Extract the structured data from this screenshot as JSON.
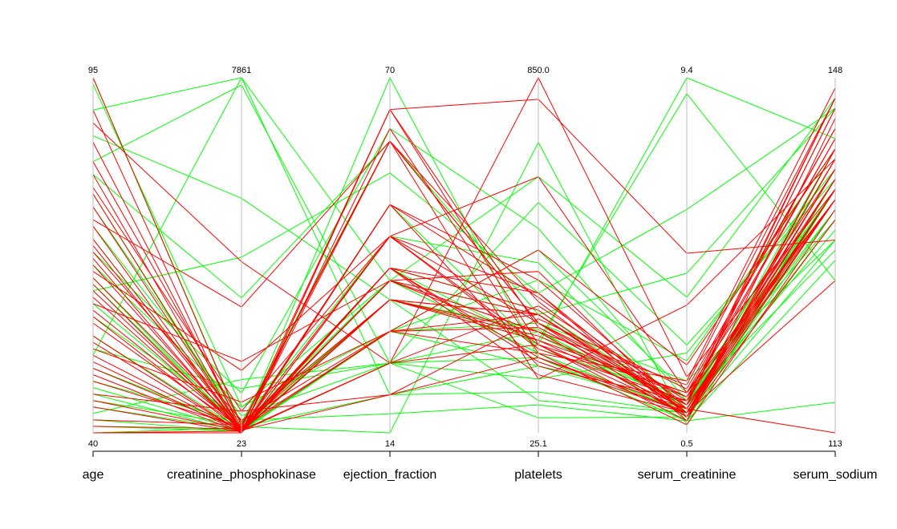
{
  "chart_data": {
    "type": "parallel-coordinates",
    "axes": [
      {
        "name": "age",
        "min": "40",
        "max": "95",
        "min_value": 40,
        "max_value": 95
      },
      {
        "name": "creatinine_phosphokinase",
        "min": "23",
        "max": "7861",
        "min_value": 23,
        "max_value": 7861
      },
      {
        "name": "ejection_fraction",
        "min": "14",
        "max": "70",
        "min_value": 14,
        "max_value": 70
      },
      {
        "name": "platelets",
        "min": "25.1",
        "max": "850.0",
        "min_value": 25.1,
        "max_value": 850.0
      },
      {
        "name": "serum_creatinine",
        "min": "0.5",
        "max": "9.4",
        "min_value": 0.5,
        "max_value": 9.4
      },
      {
        "name": "serum_sodium",
        "min": "113",
        "max": "148",
        "min_value": 113,
        "max_value": 148
      }
    ],
    "colors": {
      "green_group": "#00ff00",
      "red_group": "#ff0000",
      "axis": "#bebebe"
    },
    "series": [
      {
        "color": "green",
        "values": [
          95,
          200,
          38,
          210,
          1.0,
          134
        ]
      },
      {
        "color": "green",
        "values": [
          94,
          600,
          30,
          280,
          1.8,
          132
        ]
      },
      {
        "color": "green",
        "values": [
          90,
          7861,
          20,
          180,
          1.3,
          135
        ]
      },
      {
        "color": "green",
        "values": [
          86,
          5200,
          35,
          240,
          9.0,
          128
        ]
      },
      {
        "color": "green",
        "values": [
          82,
          7702,
          25,
          260,
          1.2,
          140
        ]
      },
      {
        "color": "green",
        "values": [
          80,
          3000,
          60,
          300,
          4.5,
          145
        ]
      },
      {
        "color": "green",
        "values": [
          77,
          100,
          70,
          200,
          0.8,
          138
        ]
      },
      {
        "color": "green",
        "values": [
          75,
          250,
          45,
          420,
          1.0,
          137
        ]
      },
      {
        "color": "green",
        "values": [
          72,
          400,
          25,
          150,
          2.5,
          139
        ]
      },
      {
        "color": "green",
        "values": [
          70,
          120,
          40,
          230,
          9.4,
          142
        ]
      },
      {
        "color": "green",
        "values": [
          68,
          900,
          62,
          500,
          1.3,
          131
        ]
      },
      {
        "color": "green",
        "values": [
          66,
          582,
          38,
          300,
          1.1,
          137
        ]
      },
      {
        "color": "green",
        "values": [
          64,
          60,
          35,
          265,
          0.9,
          136
        ]
      },
      {
        "color": "green",
        "values": [
          62,
          3900,
          55,
          350,
          6.1,
          145
        ]
      },
      {
        "color": "green",
        "values": [
          60,
          150,
          20,
          120,
          1.0,
          136
        ]
      },
      {
        "color": "green",
        "values": [
          58,
          300,
          17,
          90,
          0.8,
          130
        ]
      },
      {
        "color": "green",
        "values": [
          55,
          80,
          30,
          450,
          1.5,
          134
        ]
      },
      {
        "color": "green",
        "values": [
          53,
          1000,
          25,
          560,
          2.7,
          138
        ]
      },
      {
        "color": "green",
        "values": [
          52,
          7861,
          38,
          620,
          3.9,
          146
        ]
      },
      {
        "color": "green",
        "values": [
          50,
          160,
          14,
          700,
          0.7,
          137
        ]
      },
      {
        "color": "green",
        "values": [
          48,
          250,
          60,
          280,
          1.2,
          133
        ]
      },
      {
        "color": "green",
        "values": [
          46,
          40,
          50,
          220,
          1.4,
          137
        ]
      },
      {
        "color": "green",
        "values": [
          45,
          200,
          35,
          100,
          1.0,
          135
        ]
      },
      {
        "color": "green",
        "values": [
          43,
          1200,
          25,
          60,
          0.9,
          132
        ]
      },
      {
        "color": "green",
        "values": [
          42,
          55,
          30,
          380,
          2.3,
          141
        ]
      },
      {
        "color": "green",
        "values": [
          40,
          130,
          40,
          310,
          1.1,
          139
        ]
      },
      {
        "color": "green",
        "values": [
          41,
          60,
          25,
          200,
          0.8,
          116
        ]
      },
      {
        "color": "green",
        "values": [
          44,
          90,
          35,
          250,
          1.2,
          137
        ]
      },
      {
        "color": "green",
        "values": [
          47,
          70,
          30,
          180,
          1.1,
          141
        ]
      },
      {
        "color": "green",
        "values": [
          63,
          110,
          38,
          210,
          1.0,
          138
        ]
      },
      {
        "color": "red",
        "values": [
          95,
          170,
          60,
          280,
          1.4,
          136
        ]
      },
      {
        "color": "red",
        "values": [
          90,
          30,
          65,
          230,
          1.0,
          140
        ]
      },
      {
        "color": "red",
        "values": [
          88,
          3800,
          25,
          850,
          1.9,
          137
        ]
      },
      {
        "color": "red",
        "values": [
          85,
          120,
          65,
          800,
          5.0,
          132
        ]
      },
      {
        "color": "red",
        "values": [
          82,
          250,
          35,
          300,
          1.1,
          113
        ]
      },
      {
        "color": "red",
        "values": [
          80,
          60,
          38,
          260,
          1.7,
          146
        ]
      },
      {
        "color": "red",
        "values": [
          78,
          500,
          45,
          620,
          1.5,
          143
        ]
      },
      {
        "color": "red",
        "values": [
          75,
          80,
          20,
          200,
          1.0,
          128
        ]
      },
      {
        "color": "red",
        "values": [
          73,
          2800,
          60,
          150,
          3.7,
          140
        ]
      },
      {
        "color": "red",
        "values": [
          72,
          60,
          50,
          340,
          1.2,
          145
        ]
      },
      {
        "color": "red",
        "values": [
          70,
          100,
          40,
          160,
          1.0,
          136
        ]
      },
      {
        "color": "red",
        "values": [
          68,
          300,
          30,
          450,
          2.2,
          141
        ]
      },
      {
        "color": "red",
        "values": [
          66,
          80,
          25,
          320,
          1.3,
          138
        ]
      },
      {
        "color": "red",
        "values": [
          65,
          1400,
          45,
          280,
          0.9,
          134
        ]
      },
      {
        "color": "red",
        "values": [
          63,
          40,
          62,
          210,
          1.8,
          147
        ]
      },
      {
        "color": "red",
        "values": [
          62,
          100,
          50,
          380,
          1.1,
          139
        ]
      },
      {
        "color": "red",
        "values": [
          60,
          1600,
          38,
          300,
          1.0,
          137
        ]
      },
      {
        "color": "red",
        "values": [
          58,
          50,
          35,
          250,
          1.4,
          142
        ]
      },
      {
        "color": "red",
        "values": [
          57,
          120,
          40,
          190,
          1.0,
          137
        ]
      },
      {
        "color": "red",
        "values": [
          55,
          30,
          45,
          350,
          0.8,
          144
        ]
      },
      {
        "color": "red",
        "values": [
          53,
          700,
          30,
          270,
          1.2,
          136
        ]
      },
      {
        "color": "red",
        "values": [
          52,
          60,
          25,
          230,
          1.5,
          139
        ]
      },
      {
        "color": "red",
        "values": [
          50,
          90,
          38,
          400,
          0.9,
          141
        ]
      },
      {
        "color": "red",
        "values": [
          49,
          25,
          40,
          310,
          1.0,
          138
        ]
      },
      {
        "color": "red",
        "values": [
          48,
          150,
          35,
          240,
          1.1,
          137
        ]
      },
      {
        "color": "red",
        "values": [
          46,
          500,
          20,
          290,
          1.6,
          143
        ]
      },
      {
        "color": "red",
        "values": [
          45,
          70,
          38,
          260,
          0.9,
          136
        ]
      },
      {
        "color": "red",
        "values": [
          44,
          40,
          50,
          180,
          1.3,
          146
        ]
      },
      {
        "color": "red",
        "values": [
          42,
          200,
          60,
          330,
          1.0,
          140
        ]
      },
      {
        "color": "red",
        "values": [
          41,
          110,
          30,
          210,
          0.7,
          135
        ]
      },
      {
        "color": "red",
        "values": [
          40,
          23,
          65,
          270,
          1.2,
          145
        ]
      },
      {
        "color": "red",
        "values": [
          40,
          60,
          35,
          300,
          1.0,
          139
        ]
      },
      {
        "color": "red",
        "values": [
          61,
          80,
          40,
          200,
          1.1,
          138
        ]
      },
      {
        "color": "red",
        "values": [
          67,
          45,
          35,
          260,
          0.9,
          137
        ]
      },
      {
        "color": "red",
        "values": [
          59,
          120,
          45,
          220,
          1.3,
          142
        ]
      },
      {
        "color": "red",
        "values": [
          54,
          35,
          40,
          350,
          1.0,
          140
        ]
      },
      {
        "color": "red",
        "values": [
          69,
          90,
          38,
          240,
          1.5,
          136
        ]
      },
      {
        "color": "red",
        "values": [
          77,
          60,
          60,
          280,
          1.2,
          146
        ]
      },
      {
        "color": "red",
        "values": [
          51,
          30,
          45,
          230,
          0.8,
          141
        ]
      },
      {
        "color": "red",
        "values": [
          64,
          150,
          30,
          300,
          1.0,
          137
        ]
      }
    ]
  }
}
